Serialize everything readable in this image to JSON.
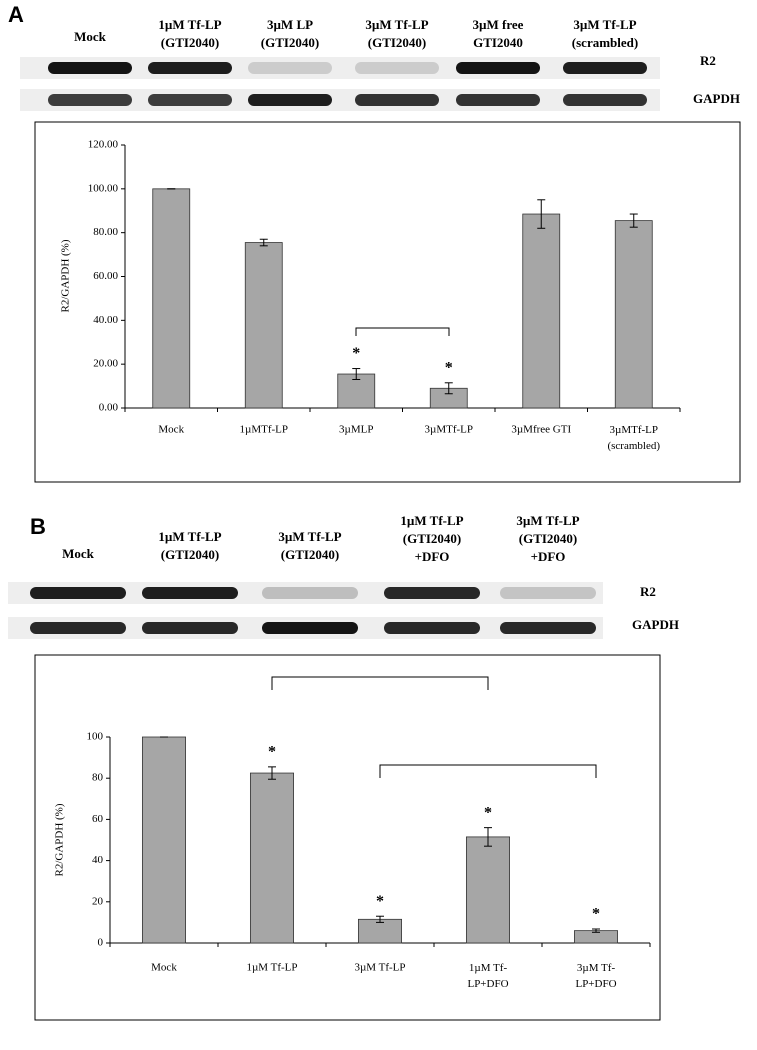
{
  "panels": [
    {
      "label": "A",
      "lanes": [
        "Mock",
        "1µM Tf-LP\n(GTI2040)",
        "3µM LP\n(GTI2040)",
        "3µM Tf-LP\n(GTI2040)",
        "3µM free\nGTI2040",
        "3µM Tf-LP\n(scrambled)"
      ],
      "rows": [
        "R2",
        "GAPDH"
      ]
    },
    {
      "label": "B",
      "lanes": [
        "Mock",
        "1µM Tf-LP\n(GTI2040)",
        "3µM Tf-LP\n(GTI2040)",
        "1µM Tf-LP\n(GTI2040)\n+DFO",
        "3µM Tf-LP\n(GTI2040)\n+DFO"
      ],
      "rows": [
        "R2",
        "GAPDH"
      ]
    }
  ],
  "chart_data": [
    {
      "type": "bar",
      "y_label": "R2/GAPDH (%)",
      "categories": [
        "Mock",
        "1µMTf-LP",
        "3µMLP",
        "3µMTf-LP",
        "3µMfree GTI",
        "3µMTf-LP\n(scrambled)"
      ],
      "values": [
        100,
        75.5,
        15.5,
        9,
        88.5,
        85.5
      ],
      "errors": [
        0,
        1.5,
        2.5,
        2.5,
        6.5,
        3
      ],
      "markers": [
        null,
        null,
        "*",
        "*",
        null,
        null
      ],
      "color": "#a6a6a6",
      "ylim": [
        0,
        120
      ],
      "yticks": [
        {
          "value": 0,
          "label": "0.00"
        },
        {
          "value": 20,
          "label": "20.00"
        },
        {
          "value": 40,
          "label": "40.00"
        },
        {
          "value": 60,
          "label": "60.00"
        },
        {
          "value": 80,
          "label": "80.00"
        },
        {
          "value": 100,
          "label": "100.00"
        },
        {
          "value": 120,
          "label": "120.00"
        }
      ],
      "grid": false
    },
    {
      "type": "bar",
      "y_label": "R2/GAPDH (%)",
      "categories": [
        "Mock",
        "1µM Tf-LP",
        "3µM Tf-LP",
        "1µM Tf-\nLP+DFO",
        "3µM Tf-\nLP+DFO"
      ],
      "values": [
        100,
        82.5,
        11.5,
        51.5,
        6
      ],
      "errors": [
        0,
        3,
        1.5,
        4.5,
        0.8
      ],
      "markers": [
        null,
        "*",
        "*",
        "*",
        "*"
      ],
      "color": "#a6a6a6",
      "ylim": [
        0,
        100
      ],
      "yticks": [
        0,
        20,
        40,
        60,
        80,
        100
      ],
      "grid": false
    }
  ]
}
